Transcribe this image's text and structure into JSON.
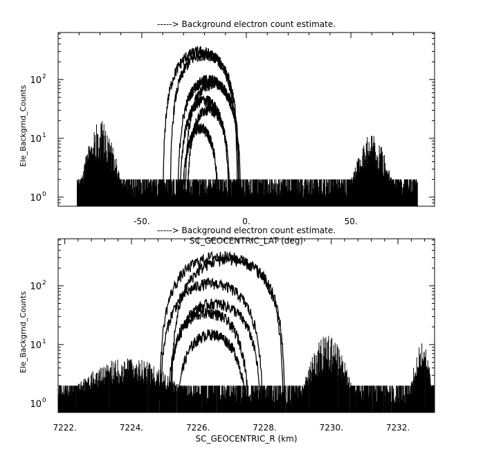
{
  "chart_data": [
    {
      "type": "line",
      "title": "-----> Background electron count estimate.",
      "xlabel": "SC_GEOCENTRIC_LAT (deg)",
      "ylabel": "Ele_Backgrnd_Counts",
      "y_scale": "log",
      "grid": false,
      "legend": "none",
      "xlim": [
        -90,
        90
      ],
      "ylim": [
        0.7,
        630
      ],
      "x_ticks": [
        {
          "value": -50,
          "label": "-50."
        },
        {
          "value": 0,
          "label": "0."
        },
        {
          "value": 50,
          "label": "50."
        }
      ],
      "y_ticks": [
        {
          "value": 1,
          "base": "10",
          "exp": "0"
        },
        {
          "value": 10,
          "base": "10",
          "exp": "1"
        },
        {
          "value": 100,
          "base": "10",
          "exp": "2"
        }
      ],
      "data_extent_x": [
        -81,
        82
      ],
      "noise_floor": [
        1,
        2
      ],
      "noise_regions": [
        {
          "x_range": [
            -81,
            -58
          ],
          "peak": 20
        },
        {
          "x_range": [
            48,
            72
          ],
          "peak": 12
        }
      ],
      "series": [
        {
          "center": -22,
          "peak": 300
        },
        {
          "center": -20,
          "peak": 270
        },
        {
          "center": -18,
          "peak": 100
        },
        {
          "center": -16,
          "peak": 85
        },
        {
          "center": -20,
          "peak": 45
        },
        {
          "center": -18,
          "peak": 32
        },
        {
          "center": -22,
          "peak": 15
        }
      ]
    },
    {
      "type": "line",
      "title": "-----> Background electron count estimate.",
      "xlabel": "SC_GEOCENTRIC_R (km)",
      "ylabel": "Ele_Backgrnd_Counts",
      "y_scale": "log",
      "grid": false,
      "legend": "none",
      "xlim": [
        7221.8,
        7233.1
      ],
      "ylim": [
        0.7,
        630
      ],
      "x_ticks": [
        {
          "value": 7222,
          "label": "7222."
        },
        {
          "value": 7224,
          "label": "7224."
        },
        {
          "value": 7226,
          "label": "7226."
        },
        {
          "value": 7228,
          "label": "7228."
        },
        {
          "value": 7230,
          "label": "7230."
        },
        {
          "value": 7232,
          "label": "7232."
        }
      ],
      "y_ticks": [
        {
          "value": 1,
          "base": "10",
          "exp": "0"
        },
        {
          "value": 10,
          "base": "10",
          "exp": "1"
        },
        {
          "value": 100,
          "base": "10",
          "exp": "2"
        }
      ],
      "data_extent_x": [
        7221.8,
        7233.1
      ],
      "noise_floor": [
        1,
        2
      ],
      "noise_regions": [
        {
          "x_range": [
            7221.8,
            7226
          ],
          "peak": 6
        },
        {
          "x_range": [
            7229,
            7230.8
          ],
          "peak": 15
        },
        {
          "x_range": [
            7232.3,
            7233.1
          ],
          "peak": 12
        }
      ],
      "series": [
        {
          "center": 7226.7,
          "peak": 320
        },
        {
          "center": 7226.9,
          "peak": 280
        },
        {
          "center": 7226.4,
          "peak": 110
        },
        {
          "center": 7226.5,
          "peak": 50
        },
        {
          "center": 7226.3,
          "peak": 35
        },
        {
          "center": 7226.4,
          "peak": 15
        }
      ]
    }
  ]
}
